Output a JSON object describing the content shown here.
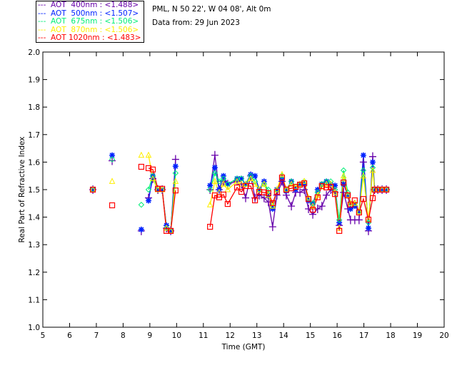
{
  "header": {
    "location": "PML, N 50 22', W 04 08', Alt 0m",
    "date": "Data from: 29 Jun 2023"
  },
  "chart_data": {
    "type": "line",
    "title": "",
    "xlabel": "Time (GMT)",
    "ylabel": "Real Part of Refractive Index",
    "xlim": [
      5,
      20
    ],
    "ylim": [
      1.0,
      2.0
    ],
    "xticks": [
      "5",
      "6",
      "7",
      "8",
      "9",
      "10",
      "11",
      "12",
      "13",
      "14",
      "15",
      "16",
      "17",
      "18",
      "19",
      "20"
    ],
    "yticks": [
      "1.0",
      "1.1",
      "1.2",
      "1.3",
      "1.4",
      "1.5",
      "1.6",
      "1.7",
      "1.8",
      "1.9",
      "2.0"
    ],
    "legend_placement": "top-left-outside",
    "x": [
      6.87,
      7.59,
      8.68,
      8.95,
      9.11,
      9.3,
      9.46,
      9.62,
      9.78,
      9.96,
      11.25,
      11.43,
      11.59,
      11.75,
      11.91,
      12.26,
      12.42,
      12.58,
      12.77,
      12.93,
      13.09,
      13.27,
      13.43,
      13.59,
      13.75,
      13.94,
      14.1,
      14.29,
      14.45,
      14.61,
      14.77,
      14.93,
      15.09,
      15.27,
      15.43,
      15.6,
      15.76,
      15.92,
      16.08,
      16.24,
      16.4,
      16.5,
      16.66,
      16.82,
      16.98,
      17.17,
      17.33,
      17.4,
      17.52,
      17.68,
      17.84
    ],
    "breaks_before": [
      1,
      2,
      3,
      10
    ],
    "series": [
      {
        "name": "AOT  400nm : <1.488>",
        "label": "---  AOT  400nm : <1.488>",
        "color": "#6600aa",
        "marker": "plus",
        "values": [
          1.5,
          1.605,
          1.35,
          1.47,
          1.54,
          1.5,
          1.5,
          1.36,
          1.35,
          1.61,
          1.5,
          1.625,
          1.5,
          1.53,
          1.52,
          1.53,
          1.52,
          1.47,
          1.55,
          1.47,
          1.48,
          1.47,
          1.455,
          1.365,
          1.48,
          1.53,
          1.48,
          1.44,
          1.49,
          1.49,
          1.5,
          1.43,
          1.41,
          1.43,
          1.44,
          1.48,
          1.5,
          1.49,
          1.37,
          1.49,
          1.43,
          1.39,
          1.39,
          1.39,
          1.6,
          1.35,
          1.62,
          1.5,
          1.5,
          1.5,
          1.5
        ]
      },
      {
        "name": "AOT  500nm : <1.507>",
        "label": "---  AOT  500nm : <1.507>",
        "color": "#0022ff",
        "marker": "asterisk",
        "values": [
          1.5,
          1.625,
          1.355,
          1.46,
          1.55,
          1.5,
          1.5,
          1.37,
          1.35,
          1.585,
          1.515,
          1.58,
          1.5,
          1.55,
          1.52,
          1.54,
          1.54,
          1.52,
          1.555,
          1.55,
          1.5,
          1.53,
          1.48,
          1.43,
          1.5,
          1.54,
          1.495,
          1.53,
          1.5,
          1.52,
          1.52,
          1.46,
          1.45,
          1.5,
          1.52,
          1.53,
          1.52,
          1.515,
          1.38,
          1.52,
          1.48,
          1.43,
          1.44,
          1.42,
          1.625,
          1.36,
          1.6,
          1.5,
          1.5,
          1.5,
          1.5
        ]
      },
      {
        "name": "AOT  675nm : <1.506>",
        "label": "---  AOT  675nm : <1.506>",
        "color": "#00ee77",
        "marker": "diamond",
        "values": [
          1.5,
          1.61,
          1.445,
          1.5,
          1.55,
          1.5,
          1.5,
          1.36,
          1.35,
          1.56,
          1.5,
          1.56,
          1.53,
          1.54,
          1.52,
          1.54,
          1.54,
          1.52,
          1.55,
          1.53,
          1.5,
          1.52,
          1.5,
          1.44,
          1.5,
          1.55,
          1.5,
          1.53,
          1.51,
          1.52,
          1.53,
          1.47,
          1.45,
          1.49,
          1.52,
          1.53,
          1.53,
          1.5,
          1.39,
          1.57,
          1.49,
          1.45,
          1.45,
          1.42,
          1.57,
          1.38,
          1.58,
          1.5,
          1.5,
          1.5,
          1.5
        ]
      },
      {
        "name": "AOT  870nm : <1.506>",
        "label": "---  AOT  870nm : <1.506>",
        "color": "#ffee00",
        "marker": "triangle",
        "values": [
          1.5,
          1.53,
          1.625,
          1.625,
          1.54,
          1.5,
          1.5,
          1.36,
          1.35,
          1.53,
          1.445,
          1.53,
          1.49,
          1.52,
          1.5,
          1.53,
          1.52,
          1.52,
          1.54,
          1.52,
          1.5,
          1.52,
          1.48,
          1.44,
          1.5,
          1.555,
          1.5,
          1.52,
          1.51,
          1.52,
          1.53,
          1.47,
          1.44,
          1.48,
          1.51,
          1.52,
          1.52,
          1.49,
          1.36,
          1.55,
          1.48,
          1.45,
          1.45,
          1.42,
          1.55,
          1.39,
          1.57,
          1.5,
          1.5,
          1.5,
          1.5
        ]
      },
      {
        "name": "AOT 1020nm : <1.483>",
        "label": "---  AOT 1020nm : <1.483>",
        "color": "#ff0000",
        "marker": "square",
        "values": [
          1.5,
          1.443,
          1.583,
          1.578,
          1.573,
          1.503,
          1.503,
          1.35,
          1.35,
          1.497,
          1.365,
          1.479,
          1.472,
          1.482,
          1.448,
          1.508,
          1.492,
          1.513,
          1.513,
          1.461,
          1.492,
          1.49,
          1.487,
          1.451,
          1.492,
          1.544,
          1.5,
          1.505,
          1.51,
          1.518,
          1.523,
          1.466,
          1.427,
          1.472,
          1.513,
          1.508,
          1.51,
          1.484,
          1.35,
          1.526,
          1.479,
          1.446,
          1.461,
          1.417,
          1.466,
          1.391,
          1.469,
          1.5,
          1.5,
          1.5,
          1.5
        ]
      }
    ]
  }
}
